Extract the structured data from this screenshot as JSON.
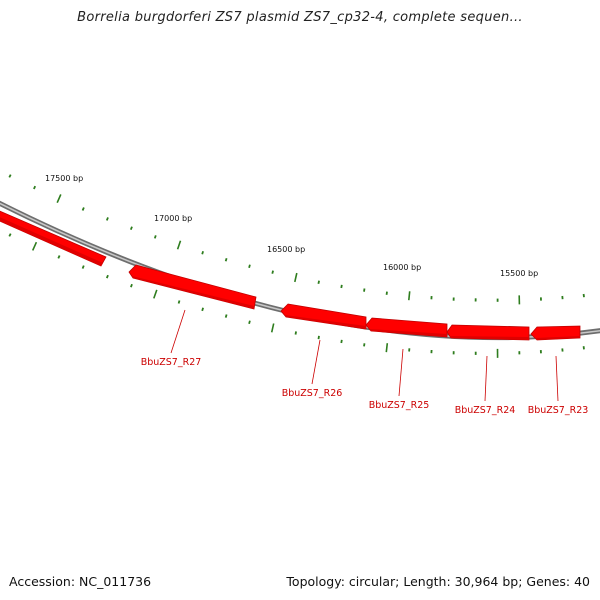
{
  "title": "Borrelia burgdorferi ZS7 plasmid ZS7_cp32-4, complete sequen...",
  "footer": {
    "accession": "Accession: NC_011736",
    "summary": "Topology: circular; Length: 30,964 bp; Genes: 40"
  },
  "colors": {
    "gene": "#ff0000",
    "gene_dark": "#d40000",
    "backbone": "#888888",
    "tick": "#2e7d1e",
    "label": "#cc0000"
  },
  "scale_labels": [
    "17500 bp",
    "17000 bp",
    "16500 bp",
    "16000 bp",
    "15500 bp"
  ],
  "genes": [
    {
      "label": "BbuZS7_R27"
    },
    {
      "label": "BbuZS7_R26"
    },
    {
      "label": "BbuZS7_R25"
    },
    {
      "label": "BbuZS7_R24"
    },
    {
      "label": "BbuZS7_R23"
    }
  ]
}
